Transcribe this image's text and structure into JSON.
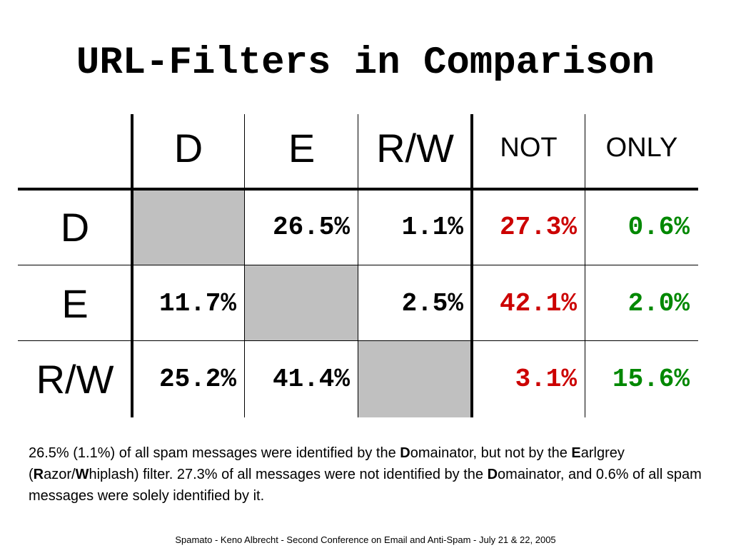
{
  "title": "URL-Filters in Comparison",
  "table": {
    "columns": [
      {
        "label": "D"
      },
      {
        "label": "E"
      },
      {
        "label": "R/W"
      },
      {
        "label": "NOT",
        "color": "#cc0000"
      },
      {
        "label": "ONLY",
        "color": "#008800"
      }
    ],
    "rows": [
      {
        "label": "D",
        "cells": [
          null,
          "26.5%",
          "1.1%",
          "27.3%",
          "0.6%"
        ]
      },
      {
        "label": "E",
        "cells": [
          "11.7%",
          null,
          "2.5%",
          "42.1%",
          "2.0%"
        ]
      },
      {
        "label": "R/W",
        "cells": [
          "25.2%",
          "41.4%",
          null,
          "3.1%",
          "15.6%"
        ]
      }
    ]
  },
  "paragraph": [
    {
      "text": "26.5% (1.1%) of all spam messages were identified by the ",
      "bold": false
    },
    {
      "text": "D",
      "bold": true
    },
    {
      "text": "omainator, but not by the ",
      "bold": false
    },
    {
      "text": "E",
      "bold": true
    },
    {
      "text": "arlgrey (",
      "bold": false
    },
    {
      "text": "R",
      "bold": true
    },
    {
      "text": "azor/",
      "bold": false
    },
    {
      "text": "W",
      "bold": true
    },
    {
      "text": "hiplash) filter. 27.3% of all messages were not identified by the ",
      "bold": false
    },
    {
      "text": "D",
      "bold": true
    },
    {
      "text": "omainator, and 0.6% of all spam messages were solely identified by it.",
      "bold": false
    }
  ],
  "footer": "Spamato - Keno Albrecht - Second Conference on Email and Anti-Spam - July 21 & 22, 2005"
}
